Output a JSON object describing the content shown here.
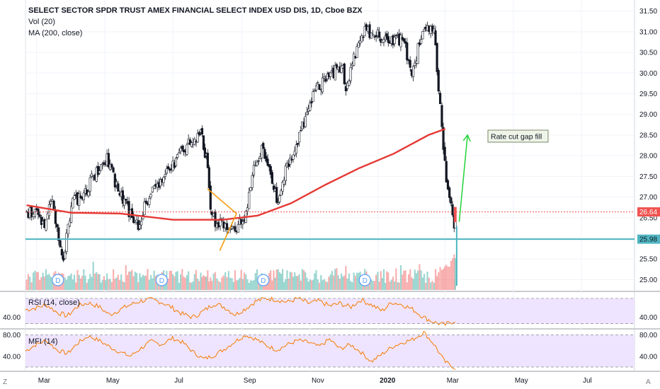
{
  "header": {
    "title": "SELECT SECTOR SPDR TRUST AMEX FINANCIAL SELECT INDEX USD DIS, 1D, Cboe BZX",
    "indicator_1": "Vol (20)",
    "indicator_2": "MA (200, close)"
  },
  "rsi_label": "RSI (14, close)",
  "mfi_label": "MFI (14)",
  "annotation": "Rate cut gap fill",
  "dividend_marker": "D",
  "corner_left": "Z",
  "corner_right": "A",
  "colors": {
    "up": "#26a69a",
    "down": "#ef5350",
    "ma": "#e53935",
    "support": "#4fb6c2",
    "arrow": "#23d23a",
    "wedge": "#f39c12",
    "oscillator": "#f57c00",
    "band": "#efe4ff"
  },
  "chart_data": [
    {
      "type": "candlestick",
      "title": "SELECT SECTOR SPDR TRUST AMEX FINANCIAL SELECT INDEX USD DIS, 1D, Cboe BZX",
      "x_tick_labels": [
        "Mar",
        "May",
        "Jul",
        "Sep",
        "Nov",
        "2020",
        "Mar",
        "May",
        "Jul"
      ],
      "y_ticks": [
        25.0,
        25.5,
        26.0,
        26.5,
        27.0,
        27.5,
        28.0,
        28.5,
        29.0,
        29.5,
        30.0,
        30.5,
        31.0,
        31.5
      ],
      "y_tick_labels": [
        "25.00",
        "25.50",
        "26.00",
        "26.50",
        "27.00",
        "27.50",
        "28.00",
        "28.50",
        "29.00",
        "29.50",
        "30.00",
        "30.50",
        "31.00",
        "31.50"
      ],
      "ylim": [
        24.75,
        31.7
      ],
      "last_price": 26.64,
      "last_price_label": "26.64",
      "support_level": 25.98,
      "support_label": "25.98",
      "close_path_month_day": [
        {
          "month": "2019-02-20",
          "close": 26.6
        },
        {
          "month": "2019-03-01",
          "close": 26.6
        },
        {
          "month": "2019-03-08",
          "close": 26.3
        },
        {
          "month": "2019-03-15",
          "close": 26.9
        },
        {
          "month": "2019-03-25",
          "close": 25.5
        },
        {
          "month": "2019-04-01",
          "close": 26.8
        },
        {
          "month": "2019-04-15",
          "close": 27.2
        },
        {
          "month": "2019-04-25",
          "close": 27.7
        },
        {
          "month": "2019-05-03",
          "close": 28.0
        },
        {
          "month": "2019-05-13",
          "close": 27.1
        },
        {
          "month": "2019-05-31",
          "close": 26.3
        },
        {
          "month": "2019-06-07",
          "close": 26.9
        },
        {
          "month": "2019-06-20",
          "close": 27.4
        },
        {
          "month": "2019-07-01",
          "close": 27.8
        },
        {
          "month": "2019-07-15",
          "close": 28.3
        },
        {
          "month": "2019-07-26",
          "close": 28.6
        },
        {
          "month": "2019-07-31",
          "close": 27.9
        },
        {
          "month": "2019-08-05",
          "close": 26.5
        },
        {
          "month": "2019-08-14",
          "close": 26.3
        },
        {
          "month": "2019-08-23",
          "close": 26.2
        },
        {
          "month": "2019-09-03",
          "close": 26.5
        },
        {
          "month": "2019-09-13",
          "close": 27.8
        },
        {
          "month": "2019-09-20",
          "close": 28.2
        },
        {
          "month": "2019-10-02",
          "close": 26.9
        },
        {
          "month": "2019-10-10",
          "close": 27.6
        },
        {
          "month": "2019-10-25",
          "close": 28.7
        },
        {
          "month": "2019-11-05",
          "close": 29.6
        },
        {
          "month": "2019-11-15",
          "close": 29.8
        },
        {
          "month": "2019-11-29",
          "close": 30.2
        },
        {
          "month": "2019-12-03",
          "close": 29.7
        },
        {
          "month": "2019-12-13",
          "close": 30.6
        },
        {
          "month": "2019-12-20",
          "close": 31.0
        },
        {
          "month": "2020-01-02",
          "close": 30.9
        },
        {
          "month": "2020-01-10",
          "close": 30.8
        },
        {
          "month": "2020-01-24",
          "close": 30.8
        },
        {
          "month": "2020-01-31",
          "close": 29.9
        },
        {
          "month": "2020-02-07",
          "close": 30.8
        },
        {
          "month": "2020-02-14",
          "close": 31.1
        },
        {
          "month": "2020-02-20",
          "close": 31.0
        },
        {
          "month": "2020-02-24",
          "close": 29.7
        },
        {
          "month": "2020-02-27",
          "close": 28.6
        },
        {
          "month": "2020-03-02",
          "close": 27.4
        },
        {
          "month": "2020-03-09",
          "close": 26.3
        },
        {
          "month": "2020-03-10",
          "close": 26.64
        }
      ],
      "ma_200": [
        {
          "date": "2019-02-20",
          "value": 26.8
        },
        {
          "date": "2019-04-01",
          "value": 26.62
        },
        {
          "date": "2019-05-15",
          "value": 26.6
        },
        {
          "date": "2019-07-01",
          "value": 26.45
        },
        {
          "date": "2019-08-15",
          "value": 26.45
        },
        {
          "date": "2019-09-15",
          "value": 26.55
        },
        {
          "date": "2019-10-15",
          "value": 26.85
        },
        {
          "date": "2019-11-15",
          "value": 27.3
        },
        {
          "date": "2019-12-15",
          "value": 27.7
        },
        {
          "date": "2020-01-15",
          "value": 28.05
        },
        {
          "date": "2020-02-15",
          "value": 28.5
        },
        {
          "date": "2020-03-01",
          "value": 28.65
        }
      ],
      "dividend_dates": [
        "2019-03-20",
        "2019-06-21",
        "2019-09-20",
        "2019-12-20"
      ]
    },
    {
      "type": "line",
      "title": "RSI (14, close)",
      "y_tick_labels": [
        "40.00"
      ],
      "y_ticks": [
        40
      ],
      "band": [
        30,
        70
      ],
      "ylim": [
        25,
        80
      ],
      "values": [
        52,
        55,
        60,
        48,
        42,
        58,
        63,
        57,
        44,
        52,
        60,
        66,
        68,
        64,
        55,
        45,
        40,
        50,
        62,
        56,
        44,
        54,
        66,
        70,
        68,
        64,
        70,
        62,
        66,
        58,
        62,
        56,
        68,
        60,
        50,
        64,
        60,
        52,
        40,
        32,
        28,
        35
      ]
    },
    {
      "type": "line",
      "title": "MFI (14)",
      "y_tick_labels": [
        "80.00",
        "40.00"
      ],
      "y_ticks": [
        80,
        40
      ],
      "band": [
        20,
        80
      ],
      "ylim": [
        12,
        90
      ],
      "values": [
        50,
        62,
        70,
        52,
        45,
        65,
        78,
        70,
        58,
        48,
        40,
        55,
        68,
        62,
        74,
        66,
        48,
        35,
        42,
        54,
        68,
        80,
        72,
        60,
        52,
        62,
        70,
        66,
        58,
        72,
        54,
        62,
        48,
        30,
        44,
        58,
        66,
        72,
        85,
        62,
        30,
        18
      ]
    }
  ]
}
